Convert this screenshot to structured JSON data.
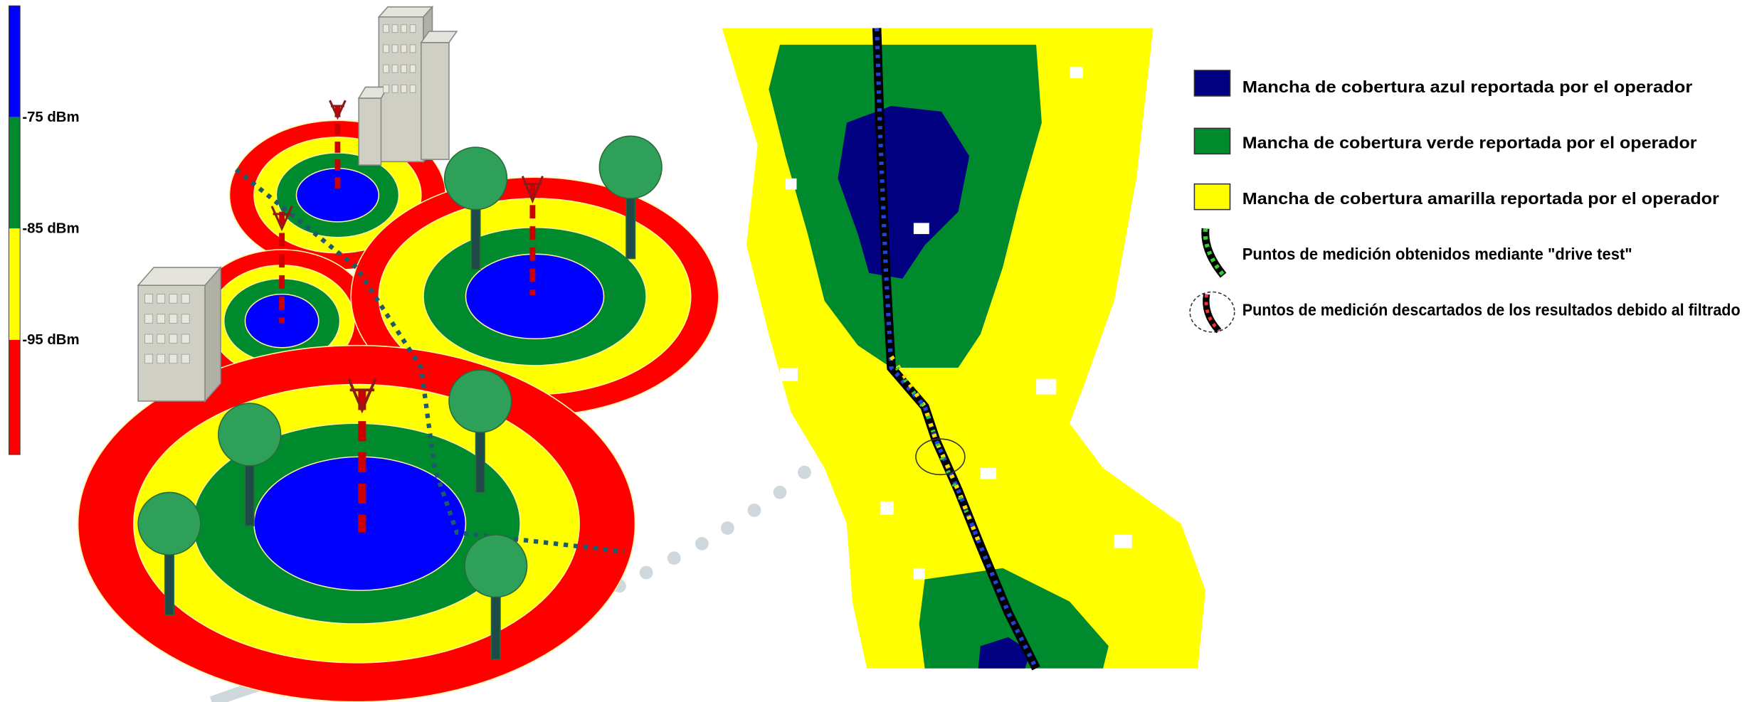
{
  "scale": {
    "labels": [
      "-75 dBm",
      "-85 dBm",
      "-95 dBm"
    ]
  },
  "legend": {
    "items": [
      "Mancha de cobertura azul reportada por el operador",
      "Mancha de cobertura verde reportada por el operador",
      "Mancha de cobertura amarilla reportada por el operador",
      "Puntos de medición obtenidos mediante \"drive test\"",
      "Puntos de medición descartados de los resultados debido al filtrado"
    ]
  }
}
